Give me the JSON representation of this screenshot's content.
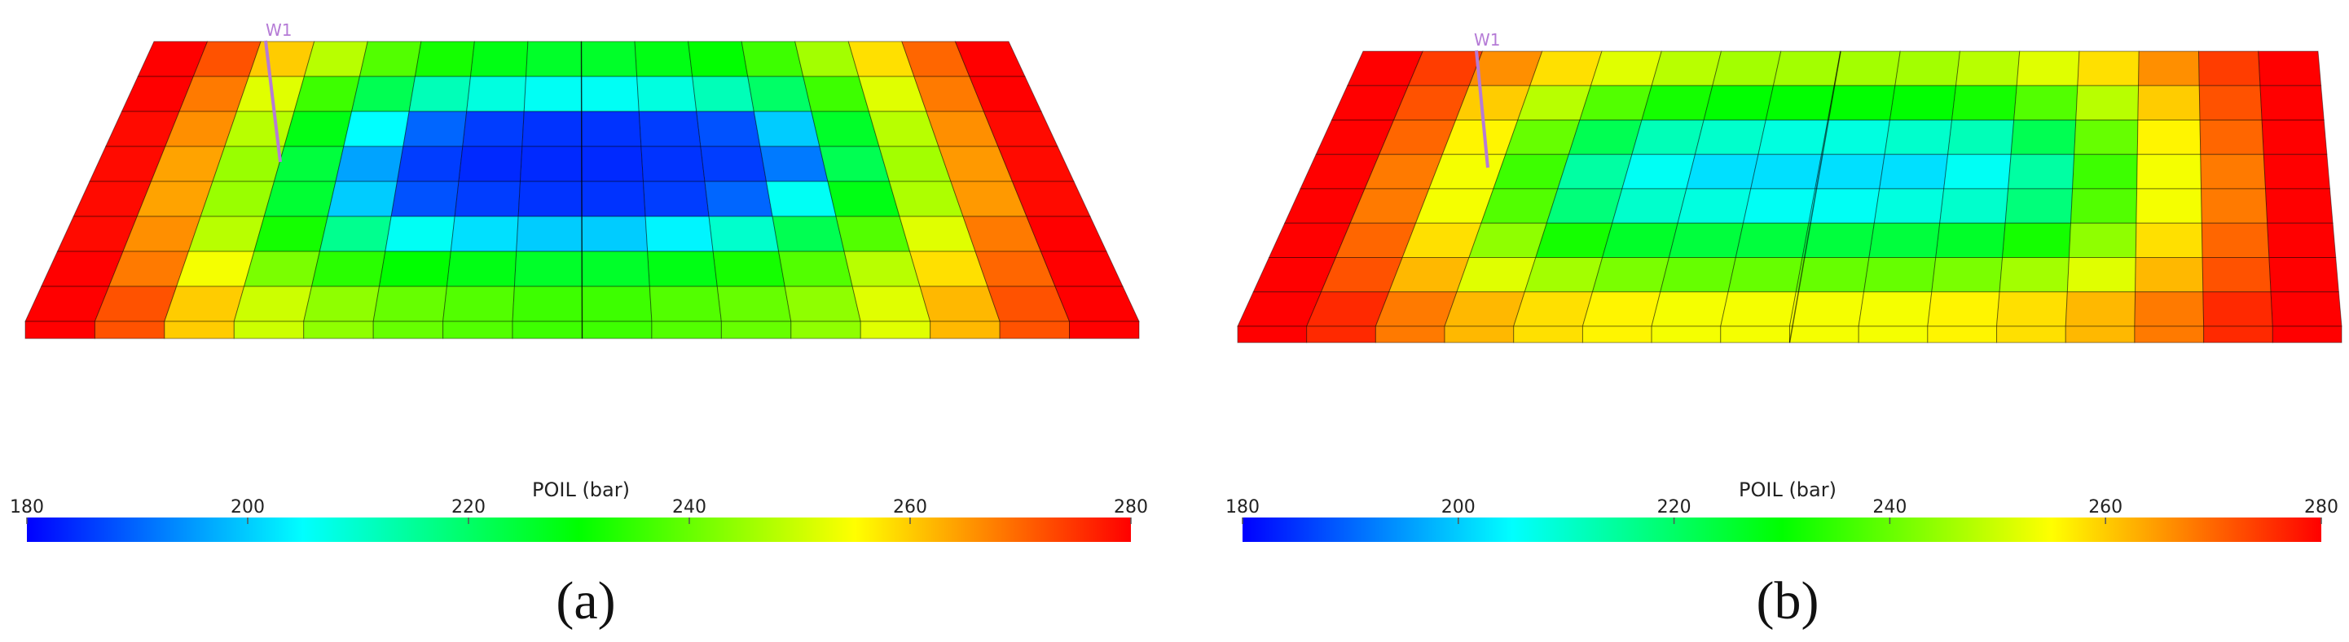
{
  "colormap": [
    "#0000ff",
    "#00ffff",
    "#00ff00",
    "#ffff00",
    "#ff0000"
  ],
  "panels": [
    {
      "label": "(a)",
      "well": "W1",
      "colorbar": {
        "title": "POIL (bar)",
        "lim": [
          180,
          280
        ],
        "ticks": [
          180,
          200,
          220,
          240,
          260,
          280
        ]
      },
      "field": [
        [
          280,
          272,
          260,
          248,
          238,
          232,
          228,
          226,
          226,
          228,
          230,
          236,
          246,
          258,
          270,
          280
        ],
        [
          280,
          268,
          252,
          236,
          222,
          212,
          208,
          206,
          206,
          208,
          212,
          220,
          236,
          252,
          268,
          280
        ],
        [
          279,
          266,
          248,
          228,
          205,
          190,
          186,
          185,
          185,
          186,
          188,
          200,
          226,
          248,
          266,
          279
        ],
        [
          279,
          264,
          245,
          224,
          196,
          186,
          184,
          184,
          184,
          185,
          186,
          192,
          222,
          246,
          265,
          279
        ],
        [
          279,
          264,
          245,
          225,
          200,
          188,
          186,
          185,
          185,
          186,
          190,
          206,
          228,
          247,
          265,
          279
        ],
        [
          279,
          266,
          248,
          232,
          216,
          206,
          202,
          200,
          200,
          204,
          210,
          222,
          238,
          252,
          268,
          280
        ],
        [
          280,
          268,
          254,
          242,
          234,
          230,
          228,
          226,
          226,
          228,
          232,
          238,
          248,
          258,
          270,
          280
        ],
        [
          280,
          272,
          260,
          250,
          244,
          240,
          238,
          236,
          236,
          238,
          240,
          244,
          252,
          262,
          272,
          280
        ]
      ]
    },
    {
      "label": "(b)",
      "well": "W1",
      "colorbar": {
        "title": "POIL (bar)",
        "lim": [
          180,
          280
        ],
        "ticks": [
          180,
          200,
          220,
          240,
          260,
          280
        ]
      },
      "field": [
        [
          280,
          274,
          266,
          258,
          252,
          248,
          246,
          246,
          246,
          246,
          248,
          252,
          258,
          266,
          274,
          280
        ],
        [
          280,
          272,
          260,
          248,
          238,
          232,
          230,
          230,
          230,
          230,
          232,
          238,
          248,
          260,
          272,
          280
        ],
        [
          280,
          270,
          256,
          240,
          222,
          212,
          210,
          208,
          208,
          210,
          212,
          222,
          240,
          256,
          270,
          280
        ],
        [
          280,
          268,
          254,
          236,
          214,
          206,
          202,
          202,
          202,
          202,
          206,
          214,
          236,
          254,
          268,
          280
        ],
        [
          280,
          268,
          254,
          238,
          218,
          210,
          208,
          206,
          206,
          208,
          210,
          218,
          238,
          254,
          268,
          280
        ],
        [
          280,
          270,
          258,
          244,
          232,
          226,
          224,
          224,
          224,
          224,
          226,
          232,
          244,
          258,
          270,
          280
        ],
        [
          280,
          272,
          262,
          252,
          246,
          242,
          240,
          240,
          240,
          240,
          242,
          246,
          252,
          262,
          272,
          280
        ],
        [
          280,
          276,
          268,
          262,
          258,
          256,
          254,
          254,
          254,
          254,
          256,
          258,
          262,
          268,
          276,
          280
        ]
      ]
    }
  ]
}
